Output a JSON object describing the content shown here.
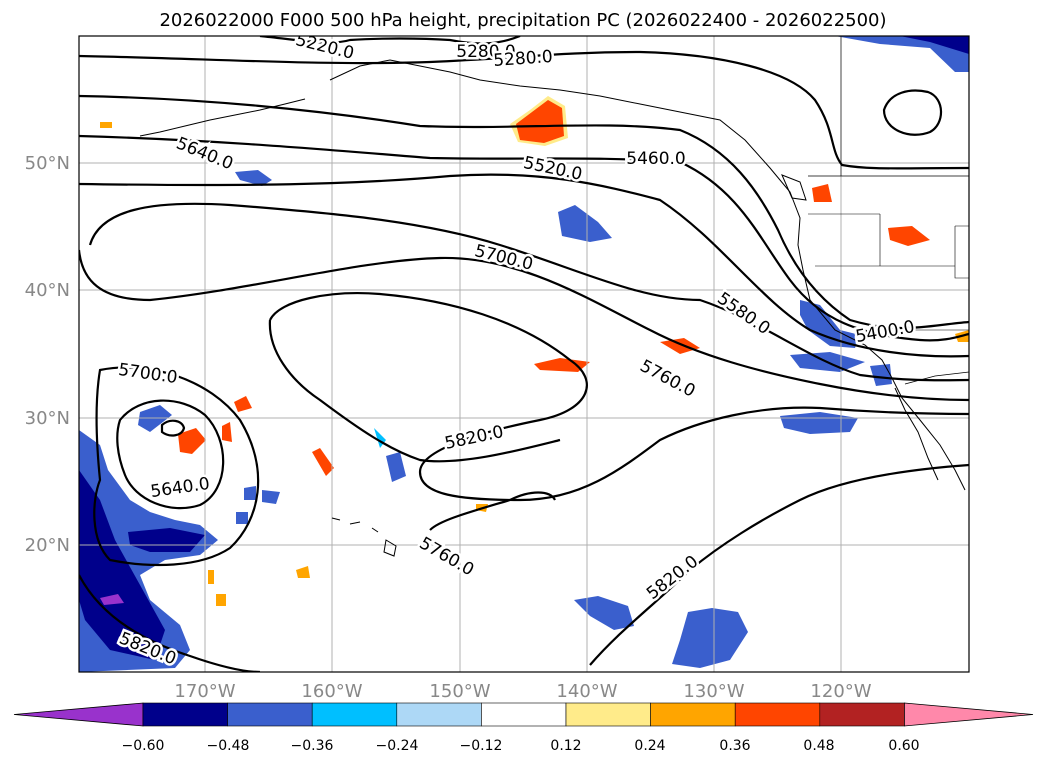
{
  "title": "2026022000 F000 500 hPa height, precipitation PC (2026022400 - 2026022500)",
  "map": {
    "lat_labels": [
      "50°N",
      "40°N",
      "30°N",
      "20°N"
    ],
    "lon_labels": [
      "170°W",
      "160°W",
      "150°W",
      "140°W",
      "130°W",
      "120°W"
    ],
    "contour_labels": [
      "5220.0",
      "5280.0",
      "5280.0",
      "5640.0",
      "5520.0",
      "5460.0",
      "5700.0",
      "5580.0",
      "5400.0",
      "5700.0",
      "5760.0",
      "5820.0",
      "5640.0",
      "5760.0",
      "5820.0",
      "5820.0"
    ]
  },
  "colorbar": {
    "ticks": [
      "−0.60",
      "−0.48",
      "−0.36",
      "−0.24",
      "−0.12",
      "0.12",
      "0.24",
      "0.36",
      "0.48",
      "0.60"
    ],
    "colors": [
      "#9932cc",
      "#00008b",
      "#3a5fcd",
      "#00bfff",
      "#add8f6",
      "#ffffff",
      "#ffeb8a",
      "#ffa500",
      "#ff4500",
      "#b22222",
      "#ff88aa"
    ]
  }
}
